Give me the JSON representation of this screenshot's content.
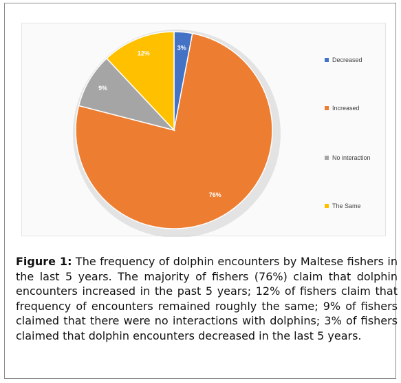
{
  "chart_data": {
    "type": "pie",
    "categories": [
      "Decreased",
      "Increased",
      "No interaction",
      "The Same"
    ],
    "values": [
      3,
      76,
      9,
      12
    ],
    "data_labels": [
      "3%",
      "76%",
      "9%",
      "12%"
    ],
    "colors": [
      "#4472C4",
      "#ED7D31",
      "#A5A5A5",
      "#FFC000"
    ],
    "legend_position": "right",
    "start_angle_deg": 0,
    "direction": "clockwise"
  },
  "caption": {
    "label": "Figure 1:",
    "text": "The frequency of dolphin encounters by Maltese fishers in the last 5 years. The majority of fishers (76%) claim that dolphin encounters increased in the past 5 years; 12% of fishers claim that frequency of encounters remained roughly the same; 9% of fishers claimed that there were no interactions with dolphins; 3% of fishers claimed that dolphin encounters decreased in the last 5 years."
  }
}
